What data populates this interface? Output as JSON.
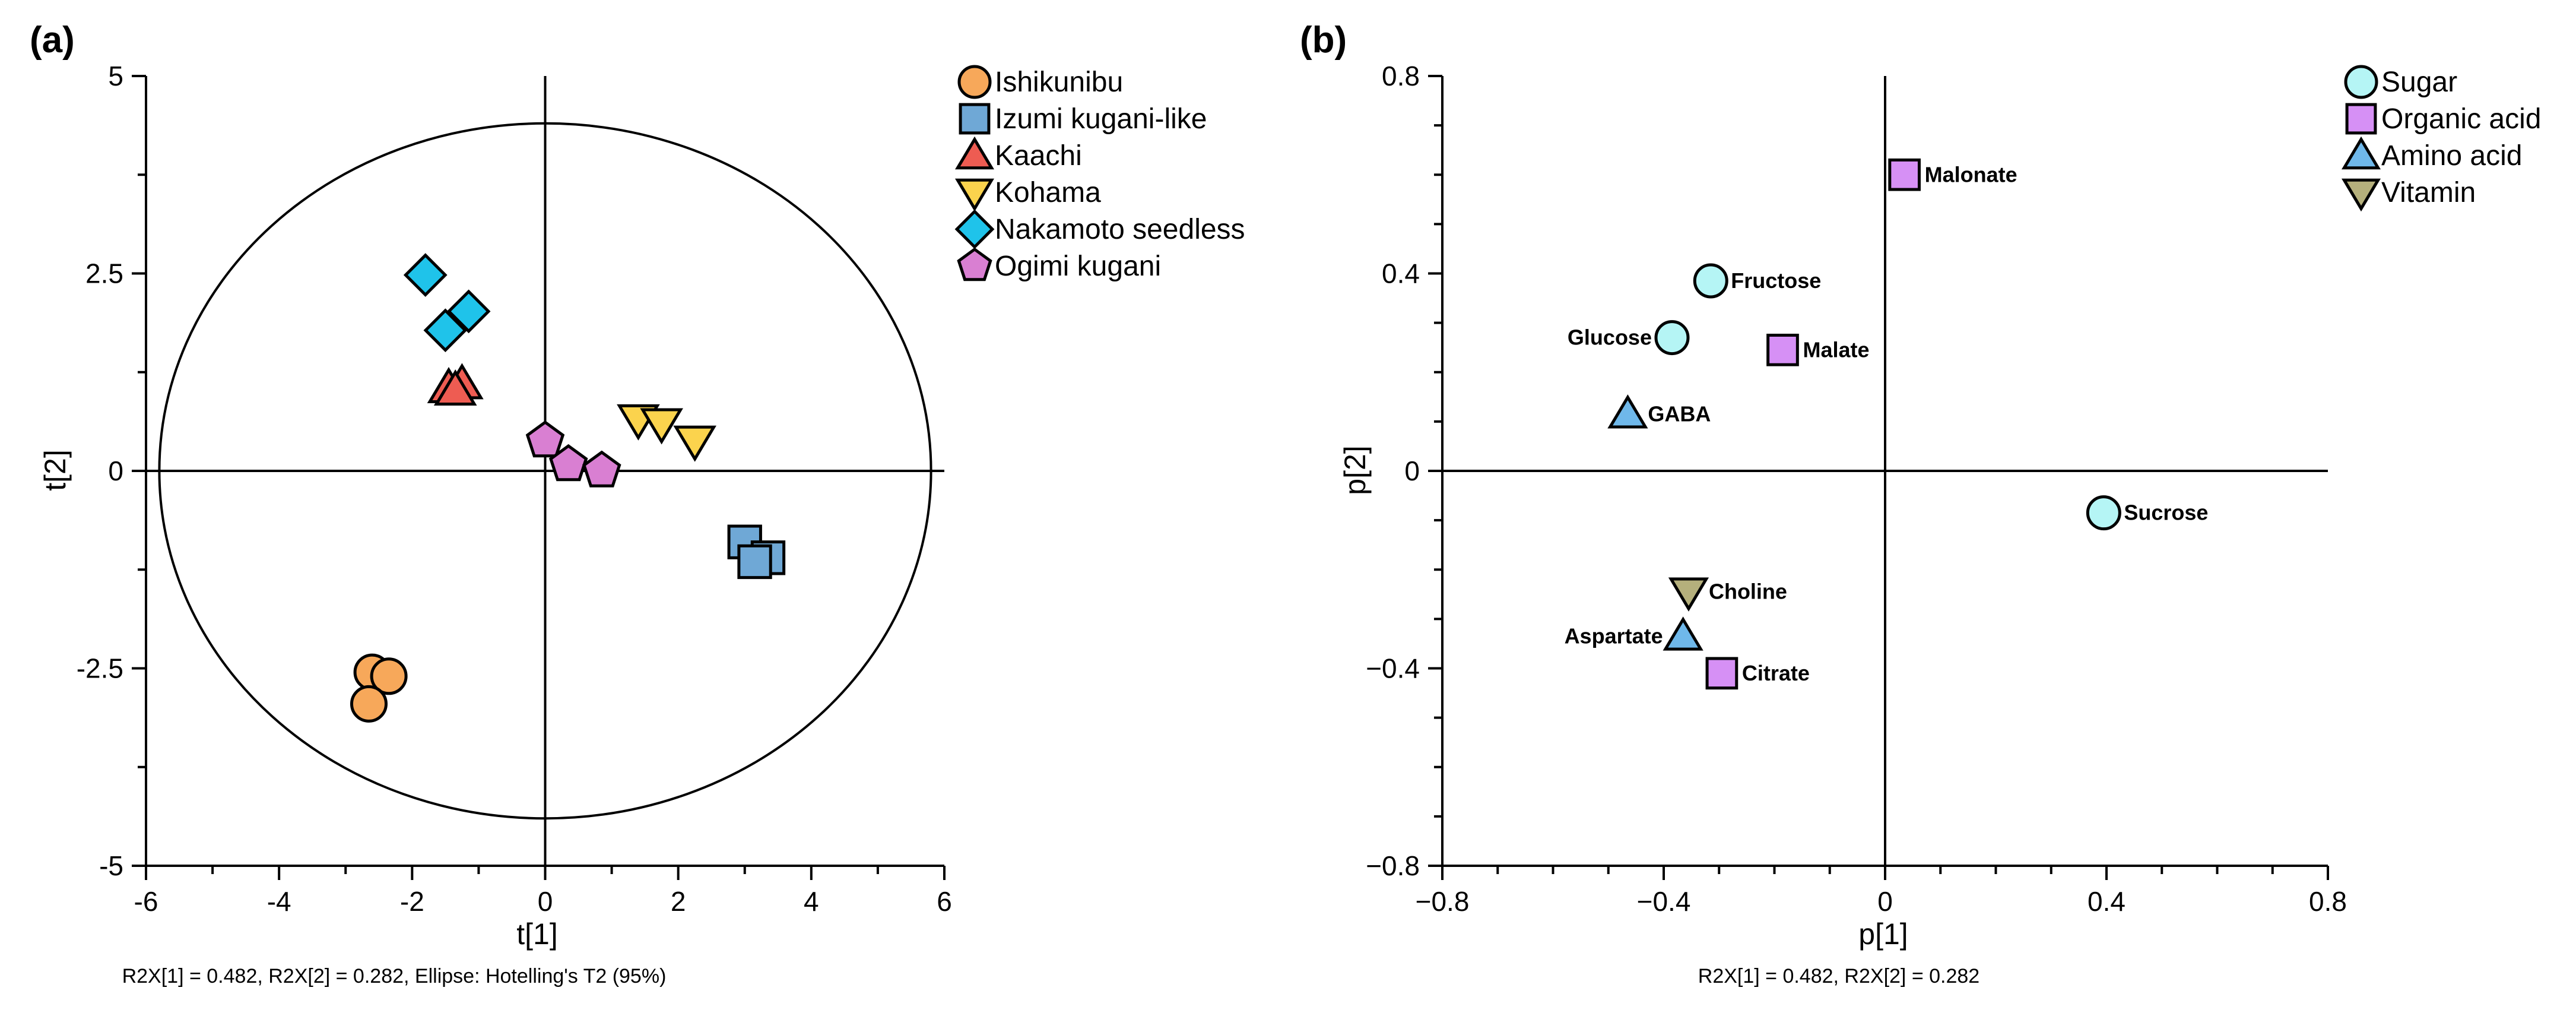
{
  "chart_data": [
    {
      "panel": "(a)",
      "type": "scatter",
      "xlabel": "t[1]",
      "ylabel": "t[2]",
      "xlim": [
        -6,
        6
      ],
      "ylim": [
        -5,
        5
      ],
      "xticks": [
        -6,
        -4,
        -2,
        0,
        2,
        4,
        6
      ],
      "yticks": [
        -5,
        -2.5,
        0,
        2.5,
        5
      ],
      "xtick_labels": [
        "-6",
        "-4",
        "-2",
        "0",
        "2",
        "4",
        "6"
      ],
      "ytick_labels": [
        "-5",
        "-2.5",
        "0",
        "2.5",
        "5"
      ],
      "caption": "R2X[1] = 0.482, R2X[2] = 0.282, Ellipse: Hotelling's T2 (95%)",
      "ellipse": {
        "cx": 0,
        "cy": 0,
        "rx": 5.8,
        "ry": 4.4,
        "label": "Hotelling's T2 (95%)"
      },
      "legend_position": "top-right outside",
      "series": [
        {
          "name": "Ishikunibu",
          "marker": "circle",
          "color": "#F7A85A",
          "points": [
            [
              -2.6,
              -2.55
            ],
            [
              -2.35,
              -2.6
            ],
            [
              -2.65,
              -2.95
            ]
          ]
        },
        {
          "name": "Izumi kugani-like",
          "marker": "square",
          "color": "#6FA8D6",
          "points": [
            [
              3.0,
              -0.9
            ],
            [
              3.35,
              -1.1
            ],
            [
              3.15,
              -1.15
            ]
          ]
        },
        {
          "name": "Kaachi",
          "marker": "triangle-up",
          "color": "#EE5C52",
          "points": [
            [
              -1.45,
              1.05
            ],
            [
              -1.25,
              1.1
            ],
            [
              -1.35,
              1.02
            ]
          ]
        },
        {
          "name": "Kohama",
          "marker": "triangle-down",
          "color": "#FBD34D",
          "points": [
            [
              1.4,
              0.65
            ],
            [
              1.75,
              0.6
            ],
            [
              2.25,
              0.38
            ]
          ]
        },
        {
          "name": "Nakamoto seedless",
          "marker": "diamond",
          "color": "#1FC3EA",
          "points": [
            [
              -1.8,
              2.48
            ],
            [
              -1.15,
              2.02
            ],
            [
              -1.5,
              1.78
            ]
          ]
        },
        {
          "name": "Ogimi kugani",
          "marker": "pentagon",
          "color": "#D97FD2",
          "points": [
            [
              0.0,
              0.38
            ],
            [
              0.35,
              0.08
            ],
            [
              0.85,
              0.0
            ]
          ]
        }
      ]
    },
    {
      "panel": "(b)",
      "type": "scatter",
      "xlabel": "p[1]",
      "ylabel": "p[2]",
      "xlim": [
        -0.8,
        0.8
      ],
      "ylim": [
        -0.8,
        0.8
      ],
      "xticks": [
        -0.8,
        -0.4,
        0,
        0.4,
        0.8
      ],
      "yticks": [
        -0.8,
        -0.4,
        0,
        0.4,
        0.8
      ],
      "xtick_labels": [
        "−0.8",
        "−0.4",
        "0",
        "0.4",
        "0.8"
      ],
      "ytick_labels": [
        "−0.8",
        "−0.4",
        "0",
        "0.4",
        "0.8"
      ],
      "caption": "R2X[1] = 0.482, R2X[2] = 0.282",
      "legend_position": "top-right",
      "series": [
        {
          "name": "Sugar",
          "marker": "circle",
          "color": "#B5F5F5",
          "points": [
            {
              "x": -0.315,
              "y": 0.385,
              "label": "Fructose",
              "side": "right"
            },
            {
              "x": -0.385,
              "y": 0.27,
              "label": "Glucose",
              "side": "left"
            },
            {
              "x": 0.395,
              "y": -0.085,
              "label": "Sucrose",
              "side": "right"
            }
          ]
        },
        {
          "name": "Organic acid",
          "marker": "square",
          "color": "#D690F5",
          "points": [
            {
              "x": 0.035,
              "y": 0.6,
              "label": "Malonate",
              "side": "right"
            },
            {
              "x": -0.185,
              "y": 0.245,
              "label": "Malate",
              "side": "right"
            },
            {
              "x": -0.295,
              "y": -0.41,
              "label": "Citrate",
              "side": "right"
            }
          ]
        },
        {
          "name": "Amino acid",
          "marker": "triangle-up",
          "color": "#6FB8EA",
          "points": [
            {
              "x": -0.465,
              "y": 0.115,
              "label": "GABA",
              "side": "right"
            },
            {
              "x": -0.365,
              "y": -0.335,
              "label": "Aspartate",
              "side": "left"
            }
          ]
        },
        {
          "name": "Vitamin",
          "marker": "triangle-down",
          "color": "#B5B07C",
          "points": [
            {
              "x": -0.355,
              "y": -0.245,
              "label": "Choline",
              "side": "right"
            }
          ]
        }
      ]
    }
  ]
}
